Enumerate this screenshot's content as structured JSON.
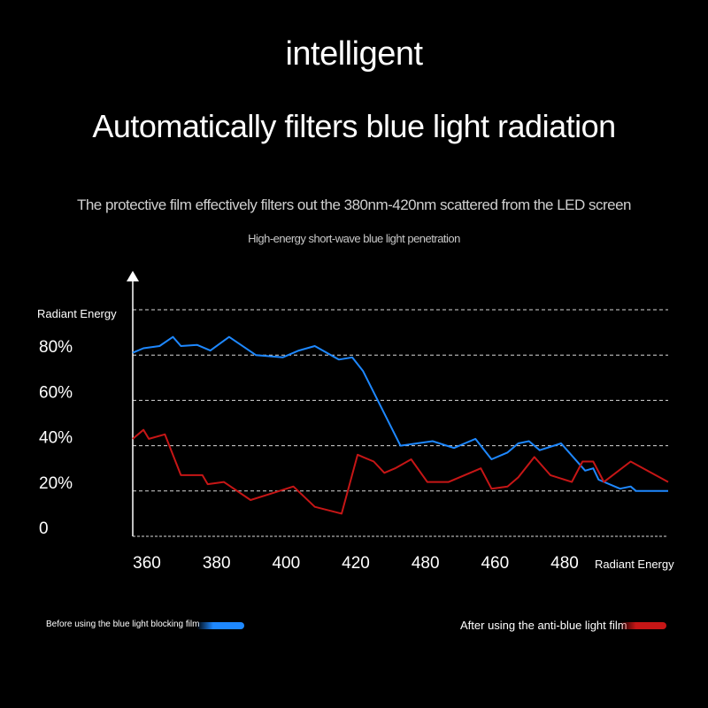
{
  "heading": {
    "title": "intelligent",
    "subtitle": "Automatically filters blue light radiation",
    "description": "The protective film effectively filters out the 380nm-420nm scattered from the LED screen",
    "caption": "High-energy short-wave blue light penetration"
  },
  "chart_data": {
    "type": "line",
    "ylabel": "Radiant Energy",
    "xlabel": "Radiant Energy",
    "y_ticks": [
      "80%",
      "60%",
      "40%",
      "20%",
      "0"
    ],
    "y_tick_values": [
      80,
      60,
      40,
      20,
      0
    ],
    "x_tick_labels": [
      "360",
      "380",
      "400",
      "420",
      "480",
      "460",
      "480"
    ],
    "ylim": [
      0,
      100
    ],
    "x_range": [
      0,
      100
    ],
    "grid": "horizontal-dashed",
    "series": [
      {
        "name": "Before using the blue light blocking film",
        "color": "#1e88ff",
        "x": [
          0,
          2,
          5,
          7.5,
          9,
          12,
          14.5,
          18,
          23,
          28,
          31,
          34,
          38.5,
          41,
          43,
          50,
          56,
          60,
          62,
          64,
          67,
          70,
          72,
          74,
          76,
          80,
          84.5,
          86,
          87,
          91,
          93,
          94,
          100
        ],
        "y": [
          81,
          83,
          84,
          88,
          84,
          84.5,
          82,
          88,
          80,
          79,
          82,
          84,
          78,
          79,
          73,
          40,
          42,
          39,
          41,
          43,
          34,
          37,
          41,
          42,
          38,
          41,
          29,
          30,
          25,
          21,
          22,
          20,
          20
        ]
      },
      {
        "name": "After using the anti-blue light film",
        "color": "#c61616",
        "x": [
          0,
          2,
          3,
          6,
          9,
          11,
          13,
          14,
          17,
          22,
          26,
          30,
          34,
          39,
          42,
          43,
          45,
          47,
          49,
          52,
          55,
          57,
          59,
          65,
          67,
          70,
          72,
          75,
          78,
          82,
          84,
          86,
          88,
          93,
          100
        ],
        "y": [
          43,
          47,
          43,
          45,
          27,
          27,
          27,
          23,
          24,
          16,
          19,
          22,
          13,
          10,
          36,
          35,
          33,
          28,
          30,
          34,
          24,
          24,
          24,
          30,
          21,
          22,
          26,
          35,
          27,
          24,
          33,
          33,
          24,
          33,
          24
        ]
      }
    ]
  }
}
